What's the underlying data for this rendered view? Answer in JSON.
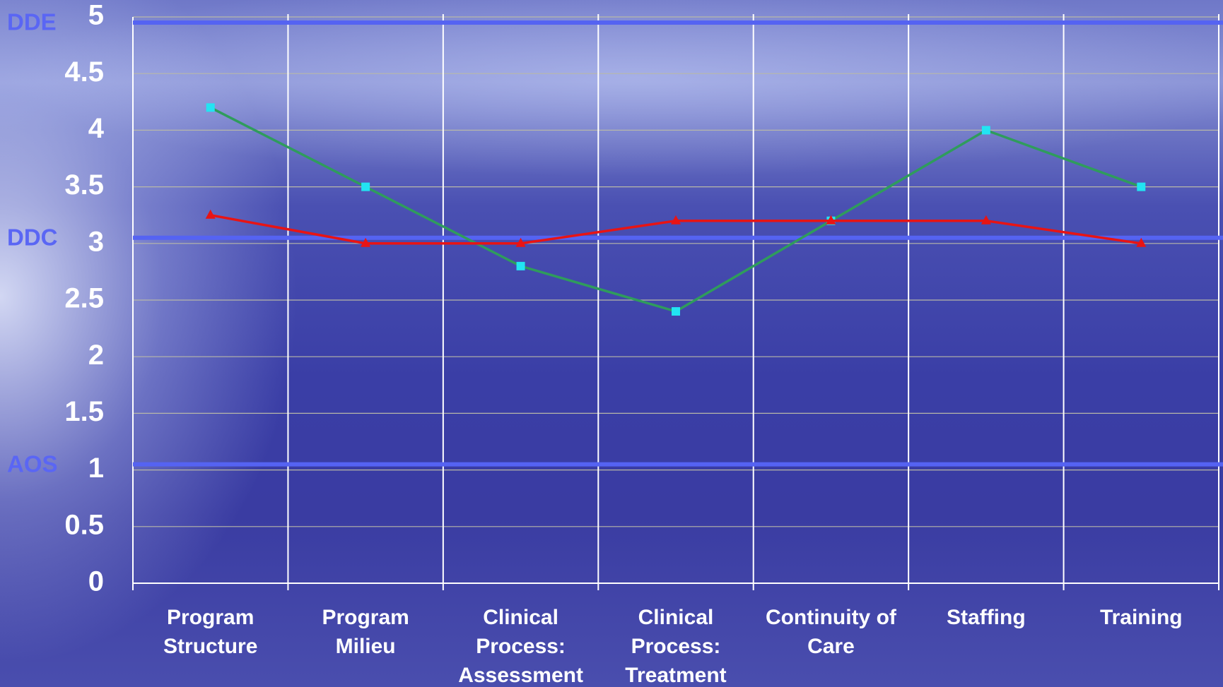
{
  "chart_data": {
    "type": "line",
    "categories": [
      [
        "Program",
        "Structure"
      ],
      [
        "Program",
        "Milieu"
      ],
      [
        "Clinical",
        "Process:",
        "Assessment"
      ],
      [
        "Clinical",
        "Process:",
        "Treatment"
      ],
      [
        "Continuity of",
        "Care"
      ],
      [
        "Staffing"
      ],
      [
        "Training"
      ]
    ],
    "series": [
      {
        "color": "#2f9c5c",
        "marker": "square",
        "marker_color": "#22e4f2",
        "values": [
          4.2,
          3.5,
          2.8,
          2.4,
          3.2,
          4.0,
          3.5
        ]
      },
      {
        "color": "#e81414",
        "marker": "triangle",
        "marker_color": "#e81414",
        "values": [
          3.25,
          3.0,
          3.0,
          3.2,
          3.2,
          3.2,
          3.0
        ]
      }
    ],
    "reference_lines": [
      {
        "label": "DDE",
        "value": 4.95
      },
      {
        "label": "DDC",
        "value": 3.05
      },
      {
        "label": "AOS",
        "value": 1.05
      }
    ],
    "ylim": [
      0,
      5
    ],
    "yticks": [
      0,
      0.5,
      1,
      1.5,
      2,
      2.5,
      3,
      3.5,
      4,
      4.5,
      5
    ],
    "grid": true
  }
}
